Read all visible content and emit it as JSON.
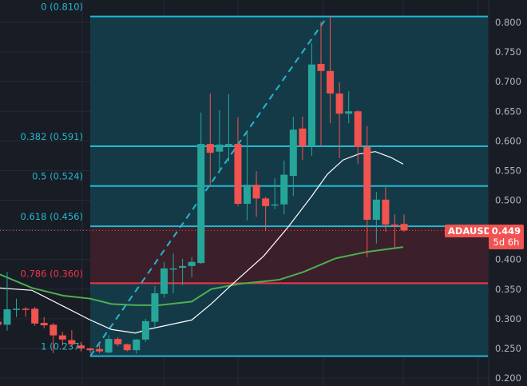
{
  "symbol": "ADAUSD",
  "last_price": "0.449",
  "countdown": "5d 6h",
  "colors": {
    "background": "#181c25",
    "up": "#26a69a",
    "down": "#f05350",
    "fib_line": "#22b8cf",
    "fib_red": "#f23645",
    "fib_fill": "#153a47",
    "fib_red_fill": "#3b1f2b",
    "ma_fast": "#ffffff",
    "ma_slow": "#4caf50"
  },
  "chart_data": {
    "type": "candlestick",
    "ylim": [
      0.2,
      0.82
    ],
    "grid": true,
    "y_ticks": [
      "0.800",
      "0.750",
      "0.700",
      "0.650",
      "0.600",
      "0.550",
      "0.500",
      "0.450",
      "0.400",
      "0.350",
      "0.300",
      "0.250",
      "0.200"
    ],
    "candles": [
      [
        0.295,
        0.3,
        0.285,
        0.29
      ],
      [
        0.29,
        0.379,
        0.28,
        0.316
      ],
      [
        0.316,
        0.334,
        0.303,
        0.317
      ],
      [
        0.317,
        0.32,
        0.303,
        0.315
      ],
      [
        0.317,
        0.32,
        0.288,
        0.292
      ],
      [
        0.293,
        0.303,
        0.284,
        0.289
      ],
      [
        0.29,
        0.293,
        0.242,
        0.272
      ],
      [
        0.272,
        0.278,
        0.255,
        0.265
      ],
      [
        0.264,
        0.281,
        0.254,
        0.257
      ],
      [
        0.255,
        0.261,
        0.245,
        0.25
      ],
      [
        0.25,
        0.251,
        0.242,
        0.247
      ],
      [
        0.249,
        0.259,
        0.242,
        0.245
      ],
      [
        0.243,
        0.272,
        0.242,
        0.266
      ],
      [
        0.266,
        0.269,
        0.254,
        0.257
      ],
      [
        0.257,
        0.258,
        0.245,
        0.247
      ],
      [
        0.247,
        0.266,
        0.241,
        0.265
      ],
      [
        0.265,
        0.3,
        0.261,
        0.296
      ],
      [
        0.295,
        0.355,
        0.285,
        0.343
      ],
      [
        0.342,
        0.396,
        0.336,
        0.385
      ],
      [
        0.383,
        0.41,
        0.343,
        0.385
      ],
      [
        0.386,
        0.401,
        0.357,
        0.389
      ],
      [
        0.389,
        0.404,
        0.37,
        0.396
      ],
      [
        0.394,
        0.648,
        0.393,
        0.595
      ],
      [
        0.595,
        0.68,
        0.525,
        0.58
      ],
      [
        0.582,
        0.652,
        0.545,
        0.594
      ],
      [
        0.591,
        0.679,
        0.565,
        0.595
      ],
      [
        0.595,
        0.64,
        0.49,
        0.494
      ],
      [
        0.494,
        0.618,
        0.466,
        0.526
      ],
      [
        0.526,
        0.549,
        0.472,
        0.503
      ],
      [
        0.503,
        0.506,
        0.448,
        0.49
      ],
      [
        0.491,
        0.537,
        0.485,
        0.493
      ],
      [
        0.493,
        0.567,
        0.476,
        0.543
      ],
      [
        0.541,
        0.641,
        0.507,
        0.619
      ],
      [
        0.621,
        0.641,
        0.568,
        0.591
      ],
      [
        0.591,
        0.765,
        0.575,
        0.729
      ],
      [
        0.73,
        0.801,
        0.591,
        0.718
      ],
      [
        0.718,
        0.811,
        0.63,
        0.68
      ],
      [
        0.68,
        0.699,
        0.571,
        0.646
      ],
      [
        0.646,
        0.684,
        0.63,
        0.65
      ],
      [
        0.65,
        0.652,
        0.561,
        0.59
      ],
      [
        0.59,
        0.625,
        0.404,
        0.467
      ],
      [
        0.467,
        0.514,
        0.427,
        0.501
      ],
      [
        0.501,
        0.522,
        0.447,
        0.459
      ],
      [
        0.459,
        0.476,
        0.42,
        0.456
      ],
      [
        0.46,
        0.476,
        0.447,
        0.449
      ]
    ],
    "ma_fast": [
      [
        0.2,
        0.352
      ],
      [
        3.7,
        0.348
      ],
      [
        7.1,
        0.321
      ],
      [
        10,
        0.298
      ],
      [
        12.3,
        0.282
      ],
      [
        14.9,
        0.276
      ],
      [
        16.2,
        0.282
      ],
      [
        21,
        0.298
      ],
      [
        23.1,
        0.325
      ],
      [
        25.3,
        0.357
      ],
      [
        28.8,
        0.406
      ],
      [
        31.4,
        0.454
      ],
      [
        34,
        0.507
      ],
      [
        35.7,
        0.544
      ],
      [
        37.4,
        0.568
      ],
      [
        39.1,
        0.578
      ],
      [
        40.9,
        0.582
      ],
      [
        42.6,
        0.572
      ],
      [
        43.9,
        0.561
      ]
    ],
    "ma_slow": [
      [
        0.2,
        0.375
      ],
      [
        3.7,
        0.352
      ],
      [
        7.1,
        0.339
      ],
      [
        10,
        0.334
      ],
      [
        12.3,
        0.325
      ],
      [
        14.9,
        0.323
      ],
      [
        17.5,
        0.323
      ],
      [
        21,
        0.329
      ],
      [
        23.1,
        0.35
      ],
      [
        26.2,
        0.359
      ],
      [
        28.8,
        0.363
      ],
      [
        30.5,
        0.366
      ],
      [
        33.1,
        0.379
      ],
      [
        36.6,
        0.402
      ],
      [
        40,
        0.413
      ],
      [
        43.9,
        0.421
      ]
    ],
    "fib_levels": [
      {
        "label": "0 (0.810)",
        "price": 0.81,
        "color": "#22b8cf"
      },
      {
        "label": "0.382 (0.591)",
        "price": 0.591,
        "color": "#22b8cf"
      },
      {
        "label": "0.5 (0.524)",
        "price": 0.524,
        "color": "#22b8cf"
      },
      {
        "label": "0.618 (0.456)",
        "price": 0.456,
        "color": "#22b8cf"
      },
      {
        "label": "0.786 (0.360)",
        "price": 0.36,
        "color": "#f23645"
      },
      {
        "label": "1 (0.237)",
        "price": 0.237,
        "color": "#22b8cf"
      }
    ]
  }
}
